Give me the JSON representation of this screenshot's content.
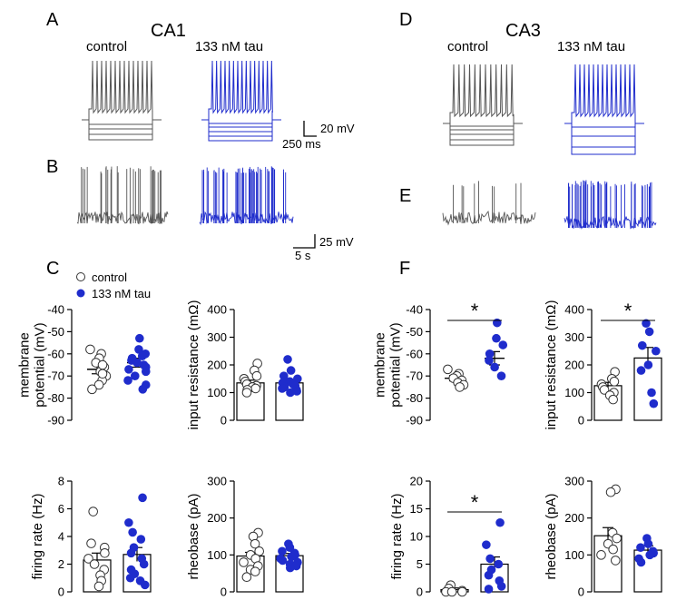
{
  "colors": {
    "control": "#555555",
    "tau": "#1f2ccc",
    "axis": "#000000"
  },
  "panels": {
    "A": "A",
    "B": "B",
    "C": "C",
    "D": "D",
    "E": "E",
    "F": "F"
  },
  "regions": {
    "left": "CA1",
    "right": "CA3"
  },
  "conditions": {
    "control": "control",
    "tau": "133 nM tau"
  },
  "scalebars": {
    "ab_voltage": "20 mV",
    "ab_time": "250 ms",
    "b_voltage": "25 mV",
    "b_time": "5 s"
  },
  "legend": {
    "control": "control",
    "tau": "133 nM tau"
  },
  "significance": "*",
  "chart_data": [
    {
      "id": "ca1-membrane-potential",
      "type": "bar",
      "region": "CA1",
      "ylabel_lines": [
        "membrane",
        "potential (mV)"
      ],
      "ylim": [
        -90,
        -40
      ],
      "yticks": [
        -40,
        -50,
        -60,
        -70,
        -80,
        -90
      ],
      "baseline": -90,
      "bars_drawn": false,
      "categories": [
        "control",
        "133 nM tau"
      ],
      "values": [
        -67,
        -64
      ],
      "sem": [
        2,
        2
      ],
      "points": [
        [
          -58,
          -60,
          -62,
          -64,
          -66,
          -68,
          -70,
          -72,
          -74,
          -76,
          -65,
          -69
        ],
        [
          -53,
          -58,
          -60,
          -62,
          -63,
          -64,
          -65,
          -66,
          -67,
          -68,
          -70,
          -72,
          -74,
          -76,
          -61
        ]
      ],
      "significant": false
    },
    {
      "id": "ca1-input-resistance",
      "type": "bar",
      "region": "CA1",
      "ylabel_lines": [
        "input resistance (mΩ)"
      ],
      "ylim": [
        0,
        400
      ],
      "yticks": [
        0,
        100,
        200,
        300,
        400
      ],
      "baseline": 0,
      "bars_drawn": true,
      "categories": [
        "control",
        "133 nM tau"
      ],
      "values": [
        135,
        135
      ],
      "sem": [
        10,
        10
      ],
      "points": [
        [
          205,
          180,
          160,
          150,
          140,
          130,
          125,
          120,
          115,
          110,
          100
        ],
        [
          220,
          180,
          160,
          150,
          140,
          135,
          130,
          125,
          120,
          115,
          110,
          105,
          100
        ]
      ],
      "significant": false
    },
    {
      "id": "ca1-firing-rate",
      "type": "bar",
      "region": "CA1",
      "ylabel_lines": [
        "firing rate (Hz)"
      ],
      "ylim": [
        0,
        8
      ],
      "yticks": [
        0,
        2,
        4,
        6,
        8
      ],
      "baseline": 0,
      "bars_drawn": true,
      "categories": [
        "control",
        "133 nM tau"
      ],
      "values": [
        2.3,
        2.7
      ],
      "sem": [
        0.5,
        0.5
      ],
      "points": [
        [
          5.8,
          3.5,
          3.2,
          2.8,
          2.4,
          2.0,
          1.6,
          1.2,
          0.8,
          0.4
        ],
        [
          6.8,
          5.0,
          4.3,
          3.8,
          3.2,
          2.8,
          2.4,
          2.0,
          1.6,
          1.3,
          1.0,
          0.8,
          0.5
        ]
      ],
      "significant": false
    },
    {
      "id": "ca1-rheobase",
      "type": "bar",
      "region": "CA1",
      "ylabel_lines": [
        "rheobase (pA)"
      ],
      "ylim": [
        0,
        300
      ],
      "yticks": [
        0,
        100,
        200,
        300
      ],
      "baseline": 0,
      "bars_drawn": true,
      "categories": [
        "control",
        "133 nM tau"
      ],
      "values": [
        97,
        98
      ],
      "sem": [
        10,
        6
      ],
      "points": [
        [
          160,
          150,
          130,
          110,
          100,
          90,
          80,
          70,
          60,
          55,
          40
        ],
        [
          130,
          120,
          110,
          105,
          100,
          95,
          90,
          85,
          80,
          75,
          70,
          65
        ]
      ],
      "significant": false
    },
    {
      "id": "ca3-membrane-potential",
      "type": "bar",
      "region": "CA3",
      "ylabel_lines": [
        "membrane",
        "potential (mV)"
      ],
      "ylim": [
        -90,
        -40
      ],
      "yticks": [
        -40,
        -50,
        -60,
        -70,
        -80,
        -90
      ],
      "baseline": -90,
      "bars_drawn": false,
      "categories": [
        "control",
        "133 nM tau"
      ],
      "values": [
        -71,
        -62
      ],
      "sem": [
        1.2,
        3
      ],
      "points": [
        [
          -67,
          -69,
          -70,
          -71,
          -72,
          -73,
          -74,
          -75
        ],
        [
          -46,
          -53,
          -56,
          -60,
          -63,
          -66,
          -70
        ]
      ],
      "significant": true
    },
    {
      "id": "ca3-input-resistance",
      "type": "bar",
      "region": "CA3",
      "ylabel_lines": [
        "input resistance (mΩ)"
      ],
      "ylim": [
        0,
        400
      ],
      "yticks": [
        0,
        100,
        200,
        300,
        400
      ],
      "baseline": 0,
      "bars_drawn": true,
      "categories": [
        "control",
        "133 nM tau"
      ],
      "values": [
        125,
        225
      ],
      "sem": [
        12,
        38
      ],
      "points": [
        [
          175,
          150,
          140,
          130,
          120,
          110,
          100,
          90,
          75
        ],
        [
          350,
          320,
          270,
          250,
          200,
          180,
          100,
          60
        ]
      ],
      "significant": true
    },
    {
      "id": "ca3-firing-rate",
      "type": "bar",
      "region": "CA3",
      "ylabel_lines": [
        "firing rate  (Hz)"
      ],
      "ylim": [
        0,
        20
      ],
      "yticks": [
        0,
        5,
        10,
        15,
        20
      ],
      "baseline": 0,
      "bars_drawn": true,
      "categories": [
        "control",
        "133 nM tau"
      ],
      "values": [
        0.4,
        5.0
      ],
      "sem": [
        0.3,
        1.3
      ],
      "points": [
        [
          1.2,
          0.6,
          0.2,
          0,
          0,
          0
        ],
        [
          12.5,
          8.5,
          6.0,
          5.0,
          4.0,
          3.0,
          2.0,
          1.0,
          0.5
        ]
      ],
      "significant": true
    },
    {
      "id": "ca3-rheobase",
      "type": "bar",
      "region": "CA3",
      "ylabel_lines": [
        "rheobase (pA)"
      ],
      "ylim": [
        0,
        300
      ],
      "yticks": [
        0,
        100,
        200,
        300
      ],
      "baseline": 0,
      "bars_drawn": true,
      "categories": [
        "control",
        "133 nM tau"
      ],
      "values": [
        152,
        113
      ],
      "sem": [
        22,
        12
      ],
      "points": [
        [
          278,
          270,
          160,
          145,
          130,
          115,
          100,
          85
        ],
        [
          145,
          130,
          120,
          110,
          105,
          100,
          90,
          80
        ]
      ],
      "significant": false
    }
  ]
}
